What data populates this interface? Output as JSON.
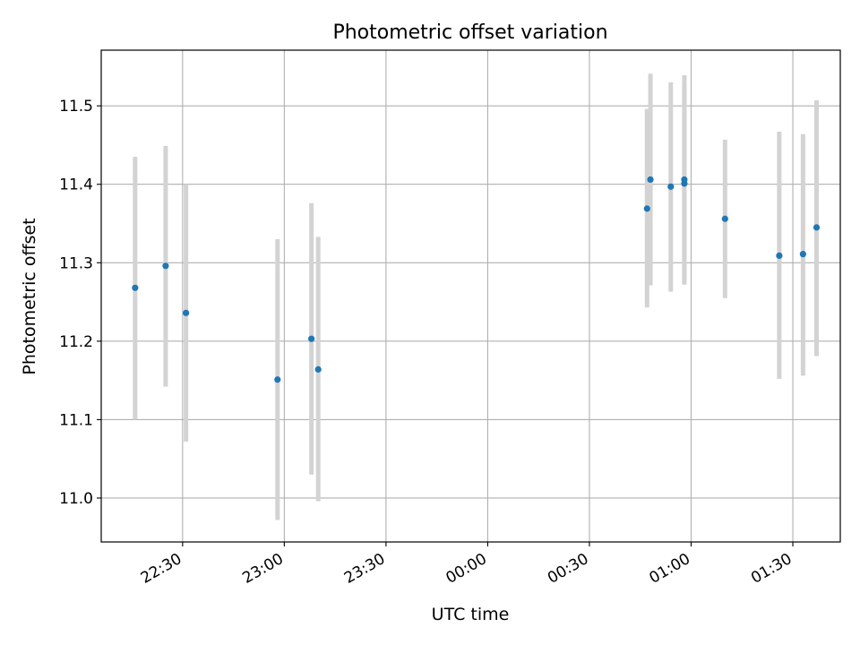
{
  "chart_data": {
    "type": "scatter",
    "title": "Photometric offset variation",
    "xlabel": "UTC time",
    "ylabel": "Photometric offset",
    "x_axis": "time",
    "xlim": [
      "22:06",
      "01:44"
    ],
    "ylim": [
      10.944,
      11.571
    ],
    "grid": true,
    "x_ticks": [
      "22:30",
      "23:00",
      "23:30",
      "00:00",
      "00:30",
      "01:00",
      "01:30"
    ],
    "y_ticks": [
      "11.0",
      "11.1",
      "11.2",
      "11.3",
      "11.4",
      "11.5"
    ],
    "y_tick_values": [
      11.0,
      11.1,
      11.2,
      11.3,
      11.4,
      11.5
    ],
    "marker_color": "#1f77b4",
    "errorbar_color": "#d3d3d3",
    "points": [
      {
        "x": "22:16",
        "y": 11.268,
        "ylow": 11.1,
        "yhigh": 11.435
      },
      {
        "x": "22:25",
        "y": 11.296,
        "ylow": 11.142,
        "yhigh": 11.449
      },
      {
        "x": "22:31",
        "y": 11.236,
        "ylow": 11.072,
        "yhigh": 11.4
      },
      {
        "x": "22:58",
        "y": 11.151,
        "ylow": 10.972,
        "yhigh": 11.33
      },
      {
        "x": "23:08",
        "y": 11.203,
        "ylow": 11.03,
        "yhigh": 11.376
      },
      {
        "x": "23:10",
        "y": 11.164,
        "ylow": 10.996,
        "yhigh": 11.333
      },
      {
        "x": "00:47",
        "y": 11.369,
        "ylow": 11.243,
        "yhigh": 11.496
      },
      {
        "x": "00:48",
        "y": 11.406,
        "ylow": 11.271,
        "yhigh": 11.541
      },
      {
        "x": "00:54",
        "y": 11.397,
        "ylow": 11.263,
        "yhigh": 11.53
      },
      {
        "x": "00:58",
        "y": 11.406,
        "ylow": 11.272,
        "yhigh": 11.539
      },
      {
        "x": "00:58",
        "y": 11.401,
        "ylow": 11.275,
        "yhigh": 11.525
      },
      {
        "x": "01:10",
        "y": 11.356,
        "ylow": 11.255,
        "yhigh": 11.457
      },
      {
        "x": "01:26",
        "y": 11.309,
        "ylow": 11.152,
        "yhigh": 11.467
      },
      {
        "x": "01:33",
        "y": 11.311,
        "ylow": 11.156,
        "yhigh": 11.464
      },
      {
        "x": "01:37",
        "y": 11.345,
        "ylow": 11.181,
        "yhigh": 11.507
      }
    ]
  }
}
